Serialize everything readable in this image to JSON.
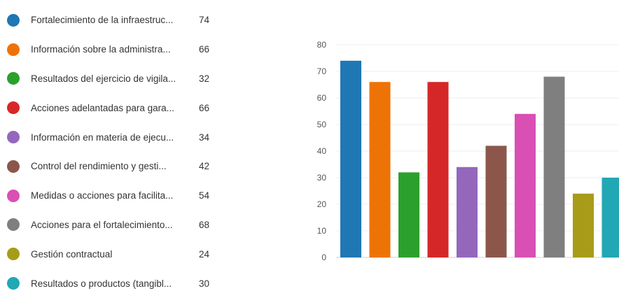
{
  "chart_data": {
    "type": "bar",
    "categories": [
      "Fortalecimiento de la infraestruc...",
      "Información sobre la administra...",
      "Resultados del ejercicio de vigila...",
      "Acciones adelantadas para gara...",
      "Información en materia de ejecu...",
      "Control del rendimiento y gesti...",
      "Medidas o acciones para facilita...",
      "Acciones para el fortalecimiento...",
      "Gestión contractual",
      "Resultados o productos (tangibl..."
    ],
    "values": [
      74,
      66,
      32,
      66,
      34,
      42,
      54,
      68,
      24,
      30
    ],
    "colors": [
      "#1f77b4",
      "#ee7306",
      "#2ca02c",
      "#d62728",
      "#9467bd",
      "#8c564b",
      "#d94fb4",
      "#7f7f7f",
      "#a89b18",
      "#22a7b5"
    ],
    "ylim": [
      0,
      80
    ],
    "yticks": [
      0,
      10,
      20,
      30,
      40,
      50,
      60,
      70,
      80
    ],
    "grid": true,
    "legend_position": "left"
  }
}
